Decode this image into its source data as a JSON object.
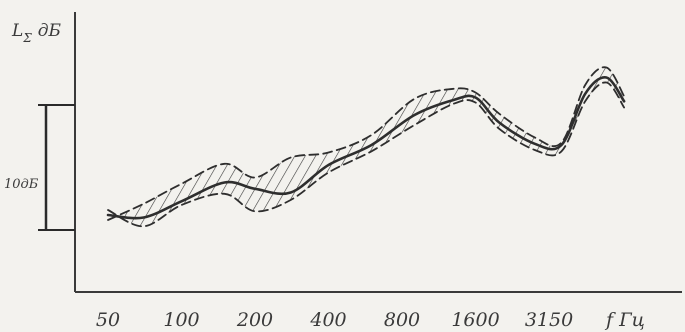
{
  "chart_data": {
    "type": "line",
    "title": "",
    "ylabel": "L",
    "ylabel_subscript": "Σ",
    "ylabel_unit": "дБ",
    "xlabel": "f  Гц",
    "x_ticks": [
      "50",
      "100",
      "200",
      "400",
      "800",
      "1600",
      "3150"
    ],
    "x_scale": "log2",
    "y_scale_bar_label": "10дБ",
    "y_scale_bar_value_db": 10,
    "series": [
      {
        "style": "solid",
        "x": [
          50,
          70,
          100,
          150,
          200,
          280,
          400,
          600,
          900,
          1300,
          1600,
          2000,
          2800,
          3600,
          4500,
          5500,
          6500
        ],
        "y": [
          1.2,
          1.0,
          2.3,
          3.8,
          3.3,
          3.0,
          5.2,
          6.8,
          9.2,
          10.4,
          10.6,
          8.6,
          6.9,
          6.8,
          10.9,
          12.2,
          10.3
        ]
      },
      {
        "style": "dashed",
        "x": [
          50,
          70,
          100,
          150,
          200,
          280,
          400,
          600,
          900,
          1300,
          1600,
          2000,
          2800,
          3600,
          4500,
          5500,
          6500
        ],
        "y": [
          0.8,
          2.1,
          3.7,
          5.3,
          4.2,
          5.8,
          6.2,
          7.6,
          10.5,
          11.3,
          11.0,
          9.3,
          7.4,
          7.0,
          11.6,
          13.0,
          10.7
        ]
      },
      {
        "style": "dashed",
        "x": [
          50,
          70,
          100,
          150,
          200,
          280,
          400,
          600,
          900,
          1300,
          1600,
          2000,
          2800,
          3600,
          4500,
          5500,
          6500
        ],
        "y": [
          1.6,
          0.3,
          2.0,
          2.9,
          1.5,
          2.4,
          4.6,
          6.3,
          8.4,
          10.1,
          10.2,
          8.1,
          6.4,
          6.3,
          10.3,
          11.8,
          9.8
        ]
      }
    ],
    "grid": false,
    "legend": "none"
  }
}
